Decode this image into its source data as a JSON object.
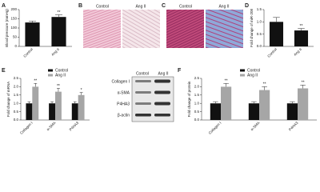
{
  "chart_data": [
    {
      "type": "bar",
      "label": "A",
      "ylabel": "Blood pressure (mmHg)",
      "categories": [
        "Control",
        "Ang II"
      ],
      "values": [
        130,
        160
      ],
      "errors": [
        8,
        12
      ],
      "annotations": [
        null,
        "**"
      ],
      "color": "#111111",
      "ylim": [
        0,
        200
      ],
      "yticks": [
        0,
        50,
        100,
        150,
        200
      ]
    },
    {
      "type": "bar",
      "label": "D",
      "ylabel": "Fold change of miR-208",
      "categories": [
        "Control",
        "Ang II"
      ],
      "values": [
        1.0,
        0.65
      ],
      "errors": [
        0.18,
        0.08
      ],
      "annotations": [
        null,
        "**"
      ],
      "color": "#111111",
      "ylim": [
        0,
        1.5
      ],
      "yticks": [
        {
          "value": 0,
          "label": "0.0"
        },
        0.5,
        {
          "value": 1,
          "label": "1.0"
        },
        1.5
      ]
    },
    {
      "type": "grouped-bar",
      "label": "E",
      "ylabel": "Fold change of mRNA",
      "categories": [
        "Collagen I",
        "α-SMA",
        "P4HA3"
      ],
      "series": [
        {
          "name": "Control",
          "color": "#111111",
          "values": [
            1.0,
            1.0,
            1.0
          ],
          "errors": [
            0.1,
            0.1,
            0.1
          ]
        },
        {
          "name": "Ang II",
          "color": "#a6a6a6",
          "values": [
            2.0,
            1.7,
            1.5
          ],
          "errors": [
            0.2,
            0.2,
            0.15
          ],
          "annotations": [
            "**",
            "**",
            "*"
          ]
        }
      ],
      "ylim": [
        0,
        2.5
      ],
      "yticks": [
        {
          "value": 0,
          "label": "0.0"
        },
        0.5,
        {
          "value": 1,
          "label": "1.0"
        },
        1.5,
        {
          "value": 2,
          "label": "2.0"
        },
        2.5
      ]
    },
    {
      "type": "grouped-bar",
      "label": "F",
      "ylabel": "Fold change of protein",
      "categories": [
        "Collagen I",
        "α-SMA",
        "P4HA3"
      ],
      "series": [
        {
          "name": "Control",
          "color": "#111111",
          "values": [
            1.0,
            1.0,
            1.0
          ],
          "errors": [
            0.1,
            0.1,
            0.1
          ]
        },
        {
          "name": "Ang II",
          "color": "#a6a6a6",
          "values": [
            2.0,
            1.8,
            1.9
          ],
          "errors": [
            0.2,
            0.2,
            0.2
          ],
          "annotations": [
            "**",
            "**",
            "**"
          ]
        }
      ],
      "ylim": [
        0,
        2.5
      ],
      "yticks": [
        {
          "value": 0,
          "label": "0.0"
        },
        0.5,
        {
          "value": 1,
          "label": "1.0"
        },
        1.5,
        {
          "value": 2,
          "label": "2.0"
        },
        2.5
      ]
    }
  ],
  "images": [
    {
      "label": "B",
      "columns": [
        "Control",
        "Ang II"
      ]
    },
    {
      "label": "C",
      "columns": [
        "Control",
        "Ang II"
      ]
    }
  ],
  "blot": {
    "columns": [
      "Control",
      "Ang II"
    ],
    "rows": [
      "Collagen I",
      "α-SMA",
      "P4HA3",
      "β-actin"
    ]
  }
}
